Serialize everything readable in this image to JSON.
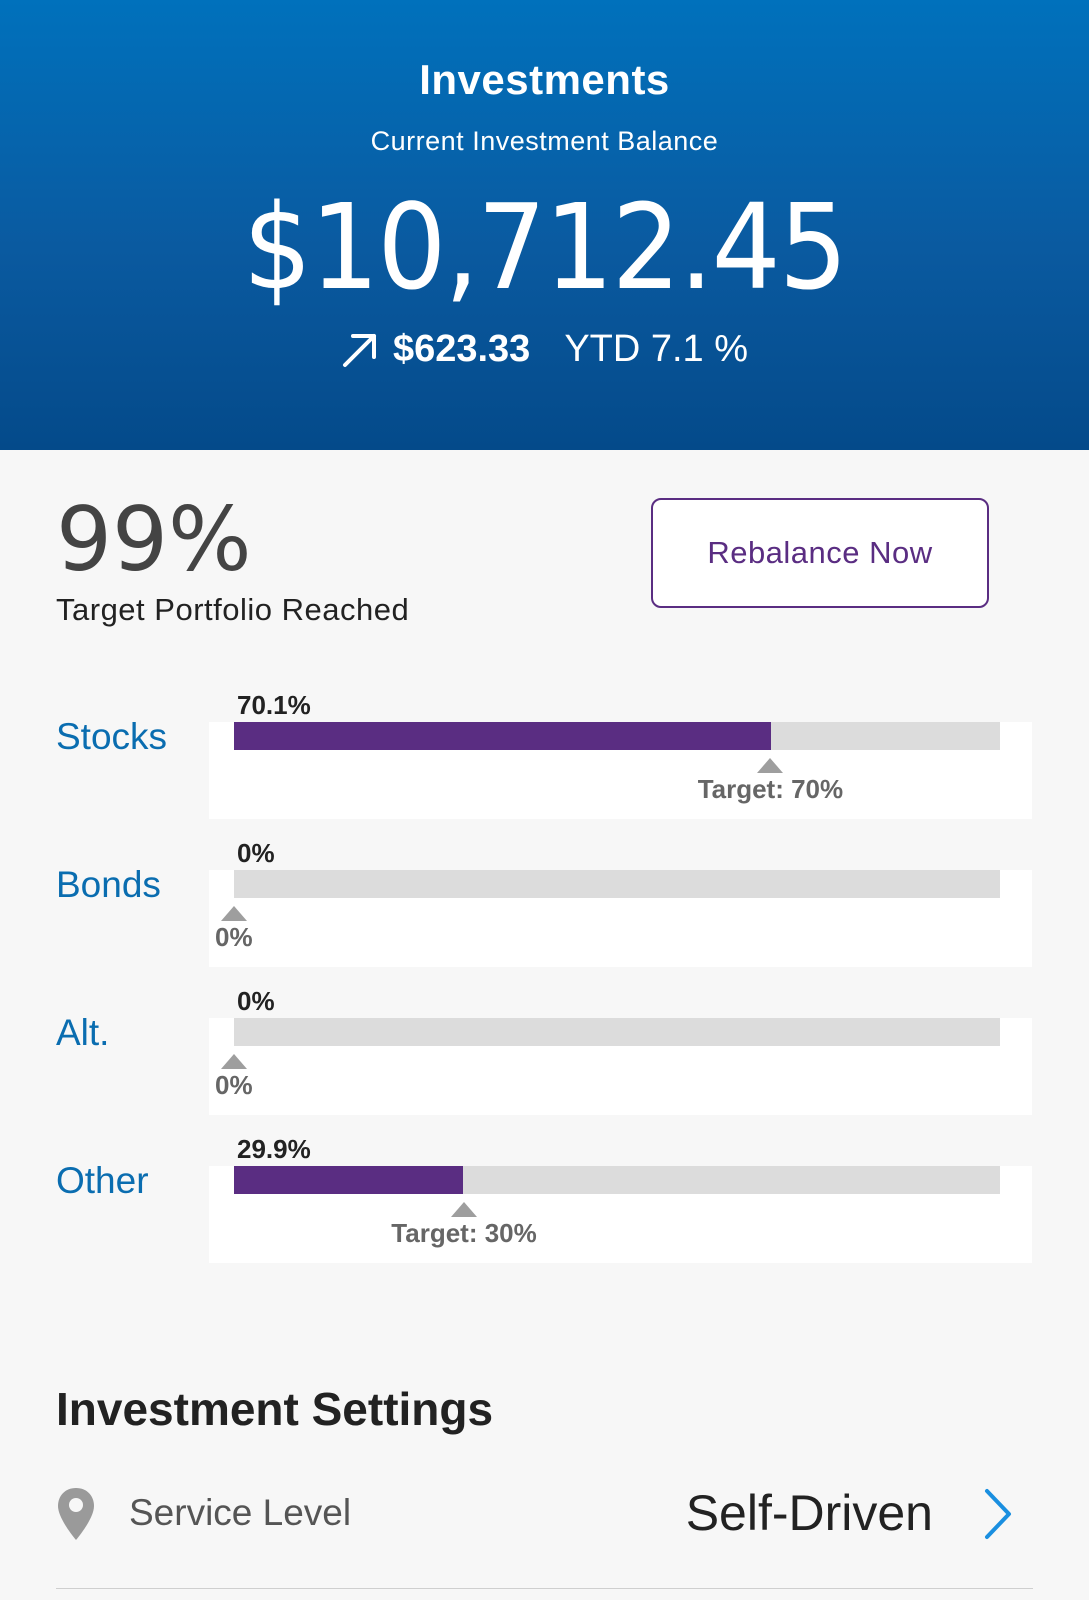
{
  "header": {
    "title": "Investments",
    "subtitle": "Current Investment Balance",
    "balance": "$10,712.45",
    "gain_icon": "arrow-up-right-icon",
    "gain_amount": "$623.33",
    "ytd": "YTD 7.1 %"
  },
  "progress": {
    "percent": "99%",
    "label": "Target Portfolio Reached",
    "rebalance_button": "Rebalance Now"
  },
  "allocations": [
    {
      "name": "Stocks",
      "value_label": "70.1%",
      "value": 70.1,
      "target": 70,
      "target_label": "Target: 70%"
    },
    {
      "name": "Bonds",
      "value_label": "0%",
      "value": 0,
      "target": 0,
      "target_label": "0%"
    },
    {
      "name": "Alt.",
      "value_label": "0%",
      "value": 0,
      "target": 0,
      "target_label": "0%"
    },
    {
      "name": "Other",
      "value_label": "29.9%",
      "value": 29.9,
      "target": 30,
      "target_label": "Target: 30%"
    }
  ],
  "settings": {
    "title": "Investment Settings",
    "items": [
      {
        "icon": "location-pin-icon",
        "label": "Service Level",
        "value": "Self-Driven",
        "chevron": "chevron-right-icon"
      }
    ]
  },
  "colors": {
    "header_top": "#0071bc",
    "header_bottom": "#044a8a",
    "accent_purple": "#5a2d82",
    "label_blue": "#0a6db0",
    "track_gray": "#dcdcdc",
    "chevron_blue": "#1a8fe0"
  }
}
